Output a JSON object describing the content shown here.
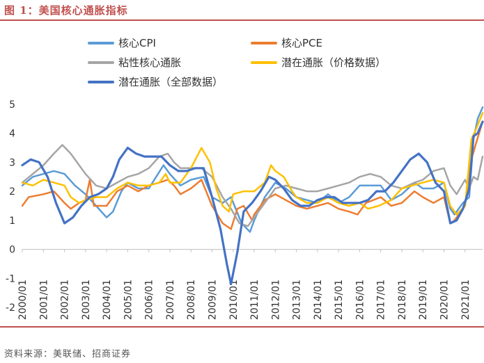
{
  "figure": {
    "title": "图 1：美国核心通胀指标",
    "source": "资料来源：美联储、招商证券"
  },
  "chart_data": {
    "type": "line",
    "title": "图 1：美国核心通胀指标",
    "xlabel": "",
    "ylabel": "",
    "ylim": [
      -2,
      5
    ],
    "yticks": [
      -2,
      -1,
      0,
      1,
      2,
      3,
      4,
      5
    ],
    "xlim": [
      2000.0,
      2021.833
    ],
    "xticks": [
      "2000/01",
      "2001/01",
      "2002/01",
      "2003/01",
      "2004/01",
      "2005/01",
      "2006/01",
      "2007/01",
      "2008/01",
      "2009/01",
      "2010/01",
      "2011/01",
      "2012/01",
      "2013/01",
      "2014/01",
      "2015/01",
      "2016/01",
      "2017/01",
      "2018/01",
      "2019/01",
      "2020/01",
      "2021/01"
    ],
    "grid": false,
    "legend_position": "top",
    "series": [
      {
        "name": "核心CPI",
        "color": "#5b9bd5",
        "width": 2.5,
        "points": [
          [
            2000.0,
            2.2
          ],
          [
            2000.5,
            2.5
          ],
          [
            2001.0,
            2.6
          ],
          [
            2001.5,
            2.7
          ],
          [
            2002.0,
            2.6
          ],
          [
            2002.5,
            2.2
          ],
          [
            2003.0,
            1.9
          ],
          [
            2003.5,
            1.5
          ],
          [
            2004.0,
            1.1
          ],
          [
            2004.3,
            1.3
          ],
          [
            2004.7,
            2.0
          ],
          [
            2005.0,
            2.3
          ],
          [
            2005.5,
            2.1
          ],
          [
            2006.0,
            2.1
          ],
          [
            2006.7,
            2.9
          ],
          [
            2007.0,
            2.6
          ],
          [
            2007.5,
            2.2
          ],
          [
            2008.0,
            2.4
          ],
          [
            2008.6,
            2.5
          ],
          [
            2009.0,
            1.8
          ],
          [
            2009.5,
            1.6
          ],
          [
            2009.9,
            1.8
          ],
          [
            2010.4,
            0.9
          ],
          [
            2010.8,
            0.6
          ],
          [
            2011.0,
            1.0
          ],
          [
            2011.5,
            1.8
          ],
          [
            2012.0,
            2.3
          ],
          [
            2012.5,
            2.1
          ],
          [
            2013.0,
            1.8
          ],
          [
            2013.5,
            1.7
          ],
          [
            2014.0,
            1.6
          ],
          [
            2014.5,
            1.9
          ],
          [
            2015.0,
            1.6
          ],
          [
            2015.5,
            1.8
          ],
          [
            2016.0,
            2.2
          ],
          [
            2016.5,
            2.2
          ],
          [
            2017.0,
            2.2
          ],
          [
            2017.5,
            1.7
          ],
          [
            2018.0,
            1.9
          ],
          [
            2018.6,
            2.3
          ],
          [
            2019.0,
            2.1
          ],
          [
            2019.5,
            2.1
          ],
          [
            2020.0,
            2.3
          ],
          [
            2020.3,
            1.4
          ],
          [
            2020.5,
            1.2
          ],
          [
            2020.9,
            1.6
          ],
          [
            2021.2,
            1.8
          ],
          [
            2021.4,
            3.8
          ],
          [
            2021.6,
            4.5
          ],
          [
            2021.833,
            4.9
          ]
        ]
      },
      {
        "name": "核心PCE",
        "color": "#ed7d31",
        "width": 2.5,
        "points": [
          [
            2000.0,
            1.5
          ],
          [
            2000.3,
            1.8
          ],
          [
            2001.0,
            1.9
          ],
          [
            2001.5,
            2.0
          ],
          [
            2002.0,
            1.6
          ],
          [
            2002.3,
            1.4
          ],
          [
            2002.7,
            1.6
          ],
          [
            2003.0,
            1.7
          ],
          [
            2003.2,
            2.4
          ],
          [
            2003.4,
            1.5
          ],
          [
            2004.0,
            1.5
          ],
          [
            2004.5,
            2.0
          ],
          [
            2005.0,
            2.2
          ],
          [
            2005.5,
            2.0
          ],
          [
            2006.0,
            2.2
          ],
          [
            2006.5,
            2.3
          ],
          [
            2006.9,
            2.4
          ],
          [
            2007.2,
            2.2
          ],
          [
            2007.5,
            1.9
          ],
          [
            2008.0,
            2.1
          ],
          [
            2008.5,
            2.4
          ],
          [
            2009.0,
            1.5
          ],
          [
            2009.5,
            0.9
          ],
          [
            2009.9,
            0.7
          ],
          [
            2010.2,
            1.4
          ],
          [
            2010.5,
            1.5
          ],
          [
            2010.9,
            1.0
          ],
          [
            2011.0,
            1.2
          ],
          [
            2011.5,
            1.7
          ],
          [
            2012.0,
            1.9
          ],
          [
            2012.5,
            1.7
          ],
          [
            2013.0,
            1.5
          ],
          [
            2013.5,
            1.4
          ],
          [
            2014.0,
            1.5
          ],
          [
            2014.5,
            1.6
          ],
          [
            2015.0,
            1.4
          ],
          [
            2015.5,
            1.3
          ],
          [
            2015.9,
            1.2
          ],
          [
            2016.3,
            1.6
          ],
          [
            2017.0,
            1.8
          ],
          [
            2017.5,
            1.5
          ],
          [
            2018.0,
            1.6
          ],
          [
            2018.6,
            2.0
          ],
          [
            2019.0,
            1.8
          ],
          [
            2019.5,
            1.6
          ],
          [
            2020.0,
            1.8
          ],
          [
            2020.3,
            0.9
          ],
          [
            2020.5,
            1.0
          ],
          [
            2021.0,
            1.5
          ],
          [
            2021.3,
            3.1
          ],
          [
            2021.5,
            3.6
          ],
          [
            2021.833,
            4.4
          ]
        ]
      },
      {
        "name": "粘性核心通胀",
        "color": "#a5a5a5",
        "width": 2.5,
        "points": [
          [
            2000.0,
            2.3
          ],
          [
            2000.5,
            2.6
          ],
          [
            2001.0,
            2.9
          ],
          [
            2001.5,
            3.3
          ],
          [
            2001.9,
            3.6
          ],
          [
            2002.3,
            3.3
          ],
          [
            2002.7,
            2.9
          ],
          [
            2003.0,
            2.6
          ],
          [
            2003.5,
            2.2
          ],
          [
            2004.0,
            2.1
          ],
          [
            2004.5,
            2.3
          ],
          [
            2005.0,
            2.5
          ],
          [
            2005.5,
            2.6
          ],
          [
            2006.0,
            2.8
          ],
          [
            2006.5,
            3.2
          ],
          [
            2006.9,
            3.3
          ],
          [
            2007.2,
            3.0
          ],
          [
            2007.5,
            2.8
          ],
          [
            2008.0,
            2.8
          ],
          [
            2008.5,
            2.8
          ],
          [
            2009.0,
            2.5
          ],
          [
            2009.5,
            1.8
          ],
          [
            2009.9,
            1.4
          ],
          [
            2010.3,
            0.9
          ],
          [
            2010.7,
            0.8
          ],
          [
            2011.0,
            1.1
          ],
          [
            2011.5,
            1.6
          ],
          [
            2012.0,
            2.1
          ],
          [
            2012.5,
            2.2
          ],
          [
            2013.0,
            2.1
          ],
          [
            2013.5,
            2.0
          ],
          [
            2014.0,
            2.0
          ],
          [
            2014.5,
            2.1
          ],
          [
            2015.0,
            2.2
          ],
          [
            2015.5,
            2.3
          ],
          [
            2016.0,
            2.5
          ],
          [
            2016.5,
            2.6
          ],
          [
            2017.0,
            2.5
          ],
          [
            2017.5,
            2.2
          ],
          [
            2018.0,
            2.1
          ],
          [
            2018.6,
            2.3
          ],
          [
            2019.0,
            2.4
          ],
          [
            2019.5,
            2.7
          ],
          [
            2020.0,
            2.8
          ],
          [
            2020.3,
            2.2
          ],
          [
            2020.6,
            1.9
          ],
          [
            2021.0,
            2.4
          ],
          [
            2021.2,
            2.1
          ],
          [
            2021.4,
            2.5
          ],
          [
            2021.6,
            2.4
          ],
          [
            2021.833,
            3.2
          ]
        ]
      },
      {
        "name": "潜在通胀（价格数据）",
        "color": "#ffc000",
        "width": 2.5,
        "points": [
          [
            2000.0,
            2.3
          ],
          [
            2000.5,
            2.2
          ],
          [
            2001.0,
            2.4
          ],
          [
            2001.5,
            2.3
          ],
          [
            2002.0,
            2.2
          ],
          [
            2002.3,
            1.8
          ],
          [
            2002.7,
            1.6
          ],
          [
            2003.0,
            1.7
          ],
          [
            2003.5,
            1.8
          ],
          [
            2004.0,
            1.8
          ],
          [
            2004.5,
            2.1
          ],
          [
            2005.0,
            2.3
          ],
          [
            2005.5,
            2.2
          ],
          [
            2006.0,
            2.2
          ],
          [
            2006.5,
            2.3
          ],
          [
            2006.8,
            2.6
          ],
          [
            2007.0,
            2.3
          ],
          [
            2007.5,
            2.3
          ],
          [
            2008.0,
            2.8
          ],
          [
            2008.5,
            3.5
          ],
          [
            2008.9,
            3.0
          ],
          [
            2009.2,
            2.1
          ],
          [
            2009.5,
            1.5
          ],
          [
            2009.8,
            1.3
          ],
          [
            2010.0,
            1.9
          ],
          [
            2010.5,
            2.0
          ],
          [
            2011.0,
            2.0
          ],
          [
            2011.5,
            2.3
          ],
          [
            2011.8,
            2.9
          ],
          [
            2012.0,
            2.7
          ],
          [
            2012.4,
            2.5
          ],
          [
            2012.8,
            2.0
          ],
          [
            2013.0,
            1.8
          ],
          [
            2013.5,
            1.6
          ],
          [
            2014.0,
            1.6
          ],
          [
            2014.5,
            1.8
          ],
          [
            2015.0,
            1.6
          ],
          [
            2015.5,
            1.5
          ],
          [
            2016.0,
            1.6
          ],
          [
            2016.4,
            1.4
          ],
          [
            2016.9,
            1.5
          ],
          [
            2017.5,
            1.7
          ],
          [
            2018.0,
            2.1
          ],
          [
            2018.5,
            2.2
          ],
          [
            2019.0,
            2.3
          ],
          [
            2019.5,
            2.4
          ],
          [
            2020.0,
            2.3
          ],
          [
            2020.3,
            1.5
          ],
          [
            2020.6,
            1.2
          ],
          [
            2021.0,
            1.5
          ],
          [
            2021.3,
            3.8
          ],
          [
            2021.5,
            4.1
          ],
          [
            2021.833,
            4.7
          ]
        ]
      },
      {
        "name": "潜在通胀（全部数据）",
        "color": "#4472c4",
        "width": 3.2,
        "points": [
          [
            2000.0,
            2.9
          ],
          [
            2000.4,
            3.1
          ],
          [
            2000.8,
            3.0
          ],
          [
            2001.2,
            2.5
          ],
          [
            2001.6,
            1.6
          ],
          [
            2002.0,
            0.9
          ],
          [
            2002.4,
            1.1
          ],
          [
            2002.8,
            1.5
          ],
          [
            2003.2,
            1.8
          ],
          [
            2003.6,
            1.9
          ],
          [
            2004.0,
            2.1
          ],
          [
            2004.3,
            2.5
          ],
          [
            2004.6,
            3.1
          ],
          [
            2005.0,
            3.5
          ],
          [
            2005.4,
            3.3
          ],
          [
            2005.8,
            3.2
          ],
          [
            2006.2,
            3.2
          ],
          [
            2006.6,
            3.2
          ],
          [
            2007.0,
            2.9
          ],
          [
            2007.4,
            2.7
          ],
          [
            2007.8,
            2.7
          ],
          [
            2008.2,
            2.8
          ],
          [
            2008.6,
            2.8
          ],
          [
            2009.0,
            1.8
          ],
          [
            2009.4,
            0.7
          ],
          [
            2009.7,
            -0.5
          ],
          [
            2009.9,
            -1.2
          ],
          [
            2010.2,
            -0.1
          ],
          [
            2010.5,
            1.3
          ],
          [
            2010.9,
            1.6
          ],
          [
            2011.3,
            2.0
          ],
          [
            2011.7,
            2.5
          ],
          [
            2012.0,
            2.4
          ],
          [
            2012.4,
            2.1
          ],
          [
            2012.8,
            1.7
          ],
          [
            2013.2,
            1.5
          ],
          [
            2013.6,
            1.5
          ],
          [
            2014.0,
            1.7
          ],
          [
            2014.4,
            1.8
          ],
          [
            2014.8,
            1.8
          ],
          [
            2015.2,
            1.6
          ],
          [
            2015.6,
            1.6
          ],
          [
            2016.0,
            1.6
          ],
          [
            2016.4,
            1.7
          ],
          [
            2016.8,
            2.0
          ],
          [
            2017.2,
            2.0
          ],
          [
            2017.6,
            2.3
          ],
          [
            2018.0,
            2.7
          ],
          [
            2018.4,
            3.1
          ],
          [
            2018.8,
            3.3
          ],
          [
            2019.2,
            3.0
          ],
          [
            2019.6,
            2.3
          ],
          [
            2020.0,
            2.0
          ],
          [
            2020.3,
            0.9
          ],
          [
            2020.6,
            1.0
          ],
          [
            2020.9,
            1.4
          ],
          [
            2021.2,
            2.1
          ],
          [
            2021.4,
            3.9
          ],
          [
            2021.6,
            4.0
          ],
          [
            2021.833,
            4.4
          ]
        ]
      }
    ]
  }
}
